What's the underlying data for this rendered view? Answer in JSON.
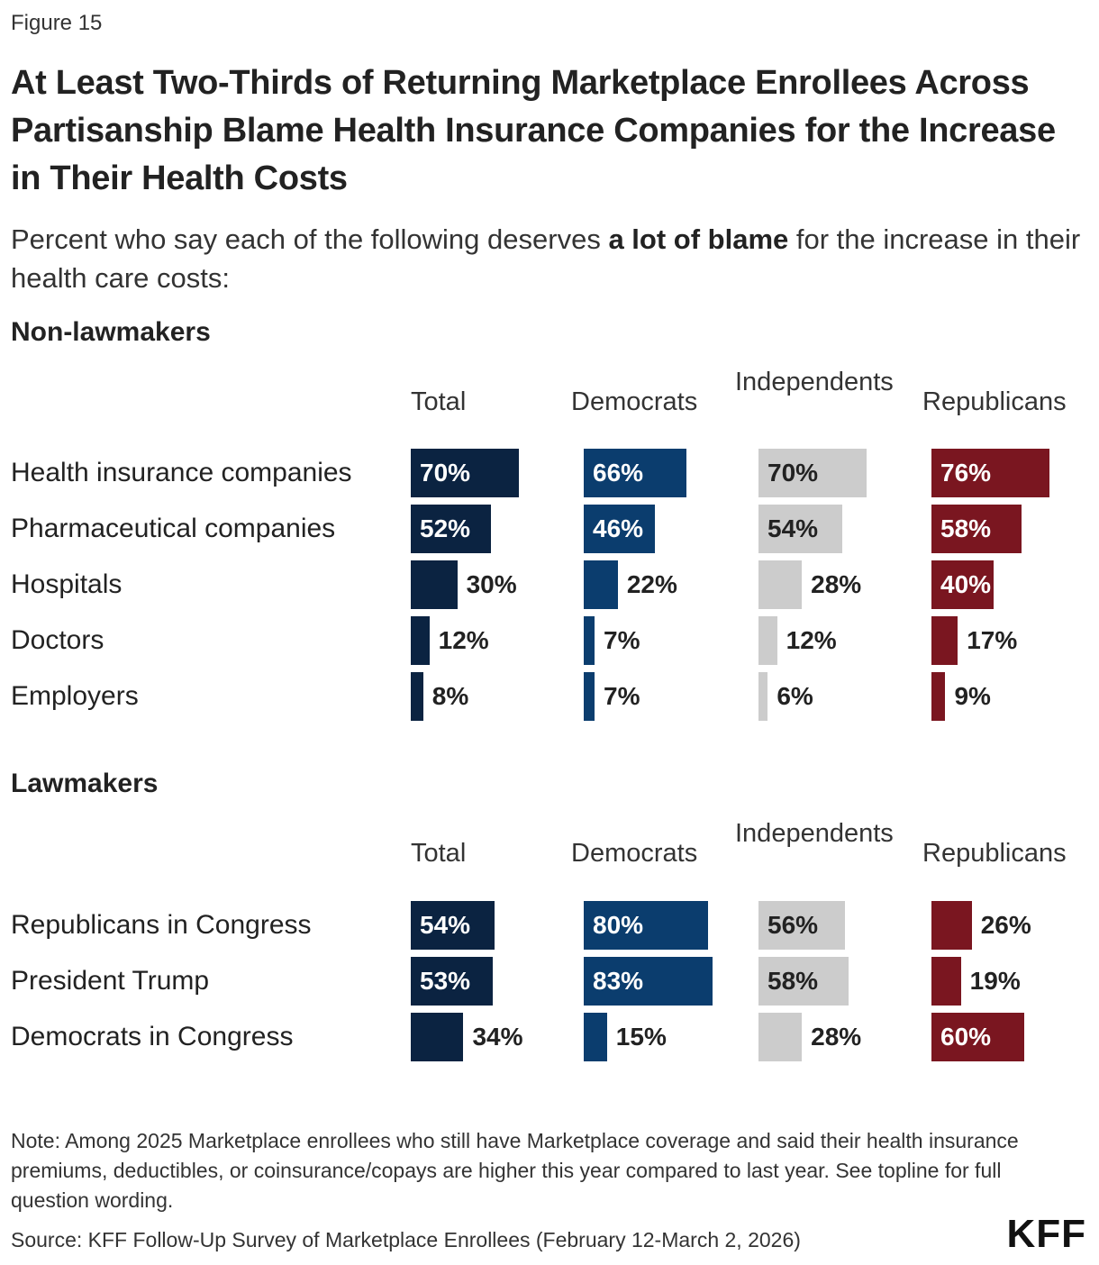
{
  "figure_label": "Figure 15",
  "title": "At Least Two-Thirds of Returning Marketplace Enrollees Across Partisanship Blame Health Insurance Companies for the Increase in Their Health Costs",
  "subtitle_pre": "Percent who say each of the following deserves ",
  "subtitle_bold": "a lot of blame",
  "subtitle_post": " for the increase in their health care costs:",
  "note": "Note: Among 2025 Marketplace enrollees who still have Marketplace coverage and said their health insurance premiums, deductibles, or coinsurance/copays are higher this year compared to last year. See topline for full question wording.",
  "source": "Source: KFF Follow-Up Survey of Marketplace Enrollees (February 12-March 2, 2026)",
  "logo": "KFF",
  "colors": {
    "total": "#0b2341",
    "democrats": "#0b3d6e",
    "independents": "#cccccc",
    "republicans": "#7a1620"
  },
  "chart_data": [
    {
      "type": "bar",
      "section_title": "Non-lawmakers",
      "columns": [
        "Total",
        "Democrats",
        "Independents",
        "Republicans"
      ],
      "categories": [
        "Health insurance companies",
        "Pharmaceutical companies",
        "Hospitals",
        "Doctors",
        "Employers"
      ],
      "series": [
        {
          "name": "Total",
          "values": [
            70,
            52,
            30,
            12,
            8
          ]
        },
        {
          "name": "Democrats",
          "values": [
            66,
            46,
            22,
            7,
            7
          ]
        },
        {
          "name": "Independents",
          "values": [
            70,
            54,
            28,
            12,
            6
          ]
        },
        {
          "name": "Republicans",
          "values": [
            76,
            58,
            40,
            17,
            9
          ]
        }
      ],
      "unit": "%"
    },
    {
      "type": "bar",
      "section_title": "Lawmakers",
      "columns": [
        "Total",
        "Democrats",
        "Independents",
        "Republicans"
      ],
      "categories": [
        "Republicans in Congress",
        "President Trump",
        "Democrats in Congress"
      ],
      "series": [
        {
          "name": "Total",
          "values": [
            54,
            53,
            34
          ]
        },
        {
          "name": "Democrats",
          "values": [
            80,
            83,
            15
          ]
        },
        {
          "name": "Independents",
          "values": [
            56,
            58,
            28
          ]
        },
        {
          "name": "Republicans",
          "values": [
            26,
            19,
            60
          ]
        }
      ],
      "unit": "%"
    }
  ]
}
